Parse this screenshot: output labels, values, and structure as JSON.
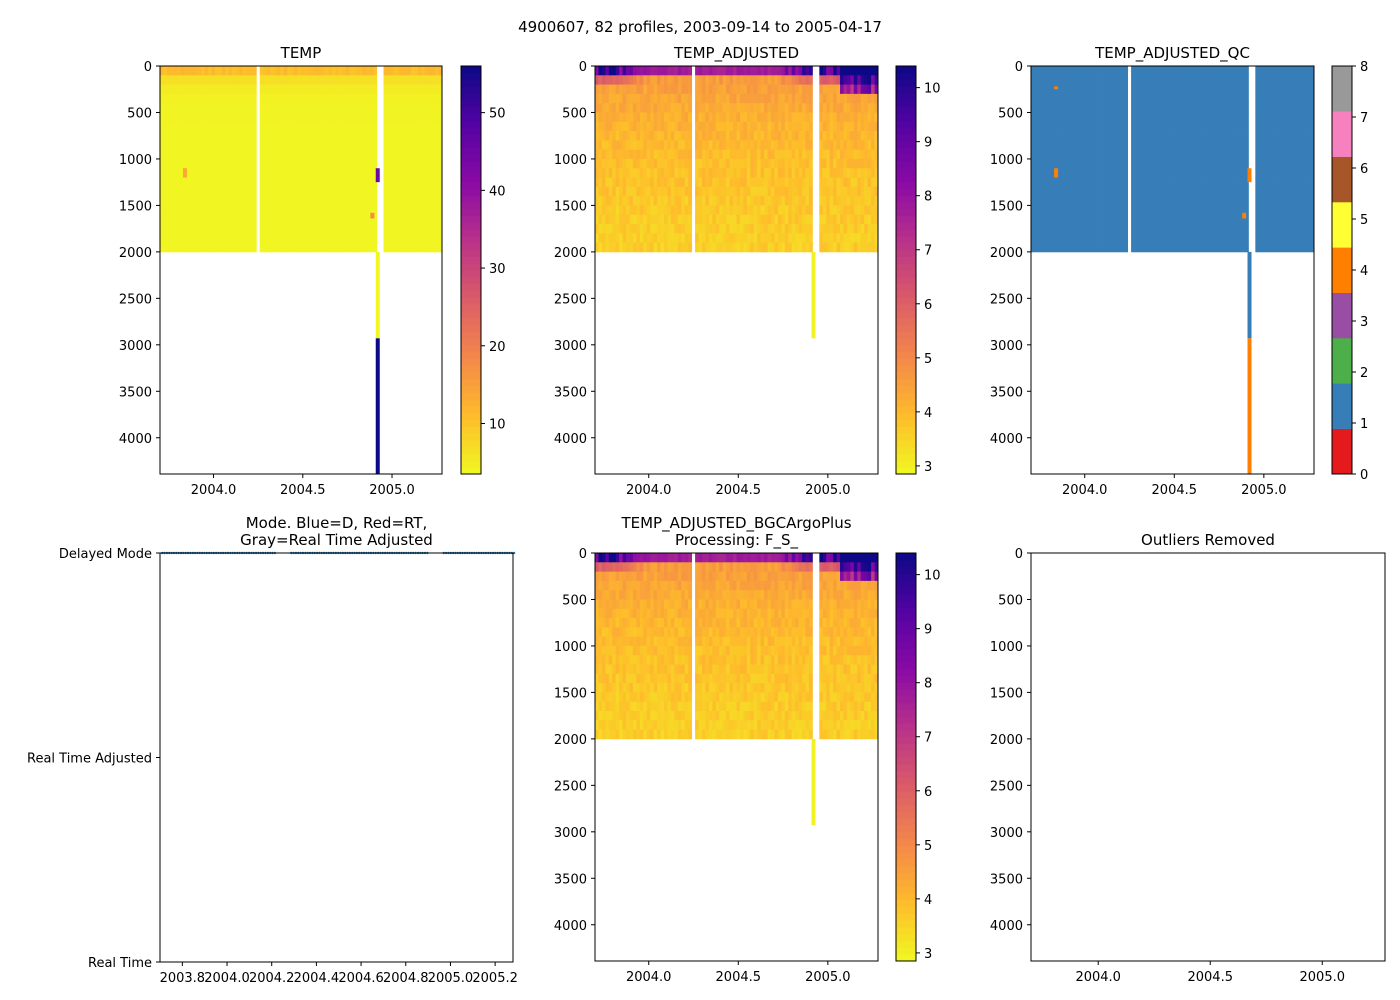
{
  "figure": {
    "suptitle": "4900607, 82 profiles, 2003-09-14 to 2005-04-17"
  },
  "chart_data": [
    {
      "id": "temp",
      "type": "heatmap",
      "title": "TEMP",
      "xlim": [
        2003.7,
        2005.28
      ],
      "ylim": [
        4390,
        0
      ],
      "xticks": [
        2004.0,
        2004.5,
        2005.0
      ],
      "xticklabels": [
        "2004.0",
        "2004.5",
        "2005.0"
      ],
      "yticks": [
        0,
        500,
        1000,
        1500,
        2000,
        2500,
        3000,
        3500,
        4000
      ],
      "yticklabels": [
        "0",
        "500",
        "1000",
        "1500",
        "2000",
        "2500",
        "3000",
        "3500",
        "4000"
      ],
      "colormap": "plasma_r",
      "colorbar": {
        "range": [
          3.5,
          56
        ],
        "ticks": [
          10,
          20,
          30,
          40,
          50
        ],
        "ticklabels": [
          "10",
          "20",
          "30",
          "40",
          "50"
        ]
      },
      "profile_depth_max": 2000,
      "gaps": [
        2004.25,
        2004.93
      ],
      "anomalies": [
        {
          "x": 2004.92,
          "depth": [
            1100,
            1250
          ],
          "value": 45
        },
        {
          "x": 2004.92,
          "depth": [
            2000,
            2930
          ],
          "value": 4
        },
        {
          "x": 2004.92,
          "depth": [
            2930,
            4390
          ],
          "value": 56
        },
        {
          "x": 2003.84,
          "depth": [
            1100,
            1200
          ],
          "value": 14
        },
        {
          "x": 2004.89,
          "depth": [
            1580,
            1640
          ],
          "value": 18
        }
      ]
    },
    {
      "id": "temp_adjusted",
      "type": "heatmap",
      "title": "TEMP_ADJUSTED",
      "xlim": [
        2003.7,
        2005.28
      ],
      "ylim": [
        4390,
        0
      ],
      "xticks": [
        2004.0,
        2004.5,
        2005.0
      ],
      "xticklabels": [
        "2004.0",
        "2004.5",
        "2005.0"
      ],
      "yticks": [
        0,
        500,
        1000,
        1500,
        2000,
        2500,
        3000,
        3500,
        4000
      ],
      "yticklabels": [
        "0",
        "500",
        "1000",
        "1500",
        "2000",
        "2500",
        "3000",
        "3500",
        "4000"
      ],
      "colormap": "plasma_r",
      "colorbar": {
        "range": [
          2.85,
          10.4
        ],
        "ticks": [
          3,
          4,
          5,
          6,
          7,
          8,
          9,
          10
        ],
        "ticklabels": [
          "3",
          "4",
          "5",
          "6",
          "7",
          "8",
          "9",
          "10"
        ]
      },
      "profile_depth_max": 2000,
      "gaps": [
        2004.25,
        2004.93
      ],
      "anomalies": [
        {
          "x": 2004.92,
          "depth": [
            2000,
            2930
          ],
          "value": 3.0
        }
      ]
    },
    {
      "id": "temp_adjusted_qc",
      "type": "heatmap",
      "title": "TEMP_ADJUSTED_QC",
      "xlim": [
        2003.7,
        2005.28
      ],
      "ylim": [
        4390,
        0
      ],
      "xticks": [
        2004.0,
        2004.5,
        2005.0
      ],
      "xticklabels": [
        "2004.0",
        "2004.5",
        "2005.0"
      ],
      "yticks": [
        0,
        500,
        1000,
        1500,
        2000,
        2500,
        3000,
        3500,
        4000
      ],
      "yticklabels": [
        "0",
        "500",
        "1000",
        "1500",
        "2000",
        "2500",
        "3000",
        "3500",
        "4000"
      ],
      "colormap": "qc_categorical",
      "dominant_flag": 1,
      "colorbar": {
        "range": [
          0,
          8
        ],
        "ticks": [
          0,
          1,
          2,
          3,
          4,
          5,
          6,
          7,
          8
        ],
        "ticklabels": [
          "0",
          "1",
          "2",
          "3",
          "4",
          "5",
          "6",
          "7",
          "8"
        ],
        "categories": [
          {
            "flag": 0,
            "color": "#e41a1c"
          },
          {
            "flag": 1,
            "color": "#377eb8"
          },
          {
            "flag": 2,
            "color": "#4daf4a"
          },
          {
            "flag": 3,
            "color": "#984ea3"
          },
          {
            "flag": 4,
            "color": "#ff7f00"
          },
          {
            "flag": 5,
            "color": "#ffff33"
          },
          {
            "flag": 6,
            "color": "#a65628"
          },
          {
            "flag": 7,
            "color": "#f781bf"
          },
          {
            "flag": 8,
            "color": "#999999"
          }
        ]
      },
      "profile_depth_max": 2000,
      "gaps": [
        2004.25,
        2004.93
      ],
      "anomalies": [
        {
          "x": 2004.92,
          "depth": [
            1100,
            1250
          ],
          "flag": 4
        },
        {
          "x": 2004.92,
          "depth": [
            2000,
            2930
          ],
          "flag": 1
        },
        {
          "x": 2004.92,
          "depth": [
            2930,
            4390
          ],
          "flag": 4
        },
        {
          "x": 2003.84,
          "depth": [
            1100,
            1200
          ],
          "flag": 4
        },
        {
          "x": 2003.84,
          "depth": [
            220,
            250
          ],
          "flag": 4
        },
        {
          "x": 2004.89,
          "depth": [
            1580,
            1640
          ],
          "flag": 4
        }
      ]
    },
    {
      "id": "mode",
      "type": "scatter",
      "title": "Mode. Blue=D, Red=RT,\nGray=Real Time Adjusted",
      "xlim": [
        2003.7,
        2005.28
      ],
      "ylim": [
        0,
        2
      ],
      "xticks": [
        2003.8,
        2004.0,
        2004.2,
        2004.4,
        2004.6,
        2004.8,
        2005.0,
        2005.2
      ],
      "xticklabels": [
        "2003.8",
        "2004.0",
        "2004.2",
        "2004.4",
        "2004.6",
        "2004.8",
        "2005.0",
        "2005.2"
      ],
      "yticks": [
        0,
        1,
        2
      ],
      "yticklabels": [
        "Real Time",
        "Real Time Adjusted",
        "Delayed Mode"
      ],
      "series": [
        {
          "name": "D",
          "color": "#1f77b4",
          "y": 2,
          "x_start": 2003.71,
          "x_end": 2005.29,
          "step": 0.0105,
          "gaps": [
            [
              2004.22,
              2004.28
            ],
            [
              2004.9,
              2004.96
            ]
          ]
        }
      ]
    },
    {
      "id": "temp_adjusted_bgc",
      "type": "heatmap",
      "title": "TEMP_ADJUSTED_BGCArgoPlus\nProcessing: F_S_",
      "xlim": [
        2003.7,
        2005.28
      ],
      "ylim": [
        4390,
        0
      ],
      "xticks": [
        2004.0,
        2004.5,
        2005.0
      ],
      "xticklabels": [
        "2004.0",
        "2004.5",
        "2005.0"
      ],
      "yticks": [
        0,
        500,
        1000,
        1500,
        2000,
        2500,
        3000,
        3500,
        4000
      ],
      "yticklabels": [
        "0",
        "500",
        "1000",
        "1500",
        "2000",
        "2500",
        "3000",
        "3500",
        "4000"
      ],
      "colormap": "plasma_r",
      "colorbar": {
        "range": [
          2.85,
          10.4
        ],
        "ticks": [
          3,
          4,
          5,
          6,
          7,
          8,
          9,
          10
        ],
        "ticklabels": [
          "3",
          "4",
          "5",
          "6",
          "7",
          "8",
          "9",
          "10"
        ]
      },
      "profile_depth_max": 2000,
      "gaps": [
        2004.25,
        2004.93
      ],
      "anomalies": [
        {
          "x": 2004.92,
          "depth": [
            2000,
            2930
          ],
          "value": 3.0
        }
      ]
    },
    {
      "id": "outliers",
      "type": "scatter",
      "title": "Outliers Removed",
      "xlim": [
        2003.7,
        2005.28
      ],
      "ylim": [
        4390,
        0
      ],
      "xticks": [
        2004.0,
        2004.5,
        2005.0
      ],
      "xticklabels": [
        "2004.0",
        "2004.5",
        "2005.0"
      ],
      "yticks": [
        0,
        500,
        1000,
        1500,
        2000,
        2500,
        3000,
        3500,
        4000
      ],
      "yticklabels": [
        "0",
        "500",
        "1000",
        "1500",
        "2000",
        "2500",
        "3000",
        "3500",
        "4000"
      ],
      "series": []
    }
  ]
}
